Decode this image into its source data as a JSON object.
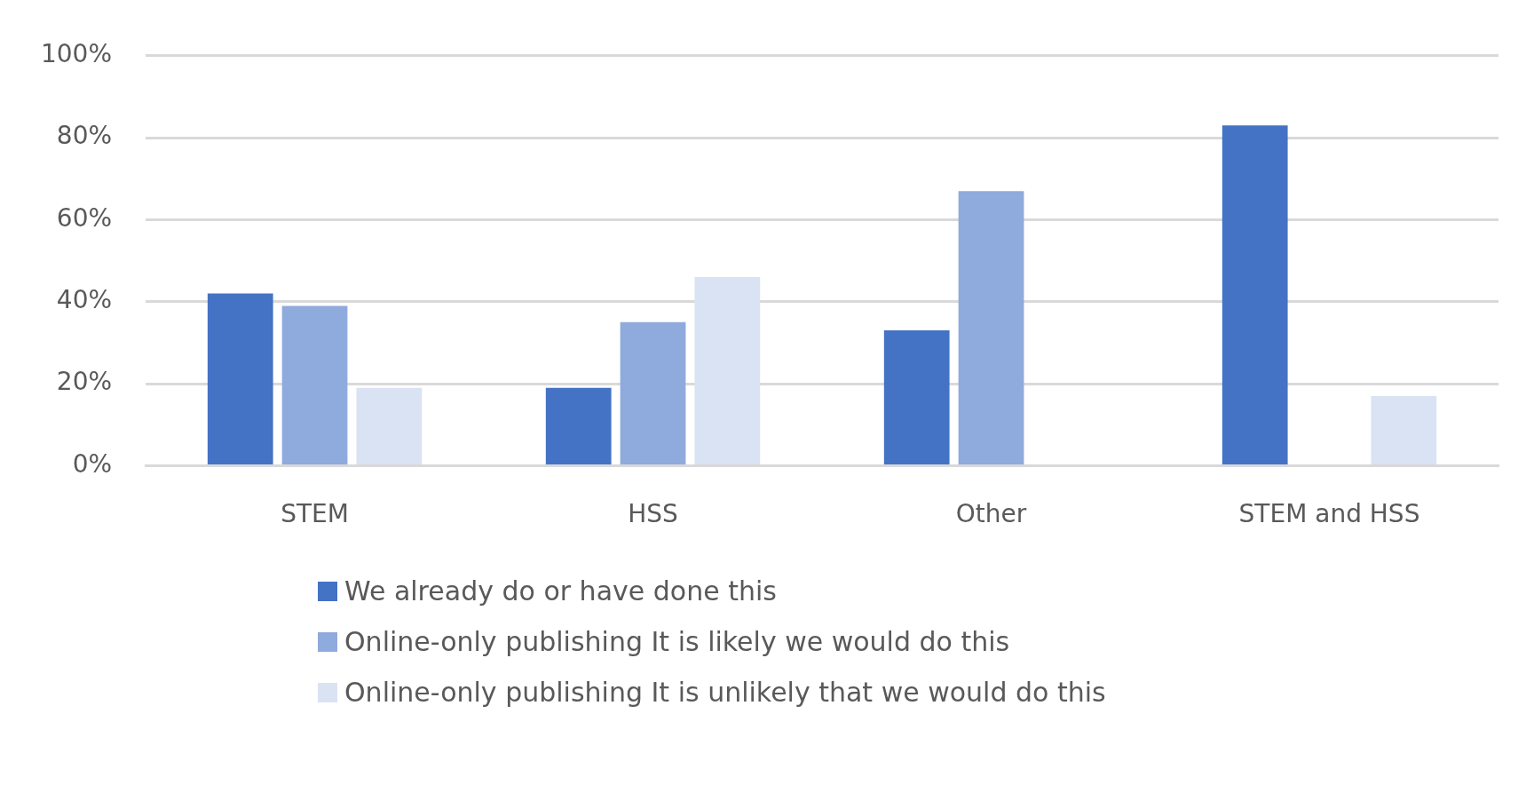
{
  "chart_data": {
    "type": "bar",
    "categories": [
      "STEM",
      "HSS",
      "Other",
      "STEM and HSS"
    ],
    "series": [
      {
        "name": "We already do or have done this",
        "color": "#4472c4",
        "values": [
          42,
          19,
          33,
          83
        ]
      },
      {
        "name": "Online-only publishing It is likely we would do this",
        "color": "#8faadc",
        "values": [
          39,
          35,
          67,
          0
        ]
      },
      {
        "name": "Online-only publishing It is unlikely that we would do this",
        "color": "#dae3f3",
        "values": [
          19,
          46,
          0,
          17
        ]
      }
    ],
    "ylim": [
      0,
      100
    ],
    "yticks": [
      {
        "value": 0,
        "label": "0%"
      },
      {
        "value": 20,
        "label": "20%"
      },
      {
        "value": 40,
        "label": "40%"
      },
      {
        "value": 60,
        "label": "60%"
      },
      {
        "value": 80,
        "label": "80%"
      },
      {
        "value": 100,
        "label": "100%"
      }
    ],
    "grid": "y",
    "legend": "bottom"
  }
}
